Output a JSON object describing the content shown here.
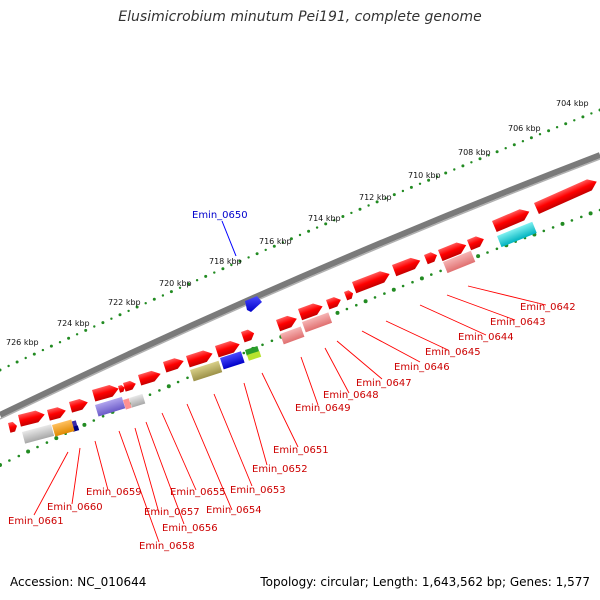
{
  "title": "Elusimicrobium minutum Pei191, complete genome",
  "footer": {
    "accession": "Accession: NC_010644",
    "stats": "Topology: circular; Length: 1,643,562 bp; Genes: 1,577"
  },
  "scale_labels": [
    "704 kbp",
    "706 kbp",
    "708 kbp",
    "710 kbp",
    "712 kbp",
    "714 kbp",
    "716 kbp",
    "718 kbp",
    "720 kbp",
    "722 kbp",
    "724 kbp",
    "726 kbp"
  ],
  "highlight_label": "Emin_0650",
  "gene_labels": [
    "Emin_0642",
    "Emin_0643",
    "Emin_0644",
    "Emin_0645",
    "Emin_0646",
    "Emin_0647",
    "Emin_0648",
    "Emin_0649",
    "Emin_0651",
    "Emin_0652",
    "Emin_0653",
    "Emin_0654",
    "Emin_0655",
    "Emin_0656",
    "Emin_0657",
    "Emin_0658",
    "Emin_0659",
    "Emin_0660",
    "Emin_0661"
  ],
  "colors": {
    "forward_gene": "#ff0000",
    "highlight": "#0000ff",
    "backbone": "#7a7a7a",
    "tick": "#228b22",
    "label_line": "#ff0000",
    "highlight_line": "#0000ff"
  }
}
